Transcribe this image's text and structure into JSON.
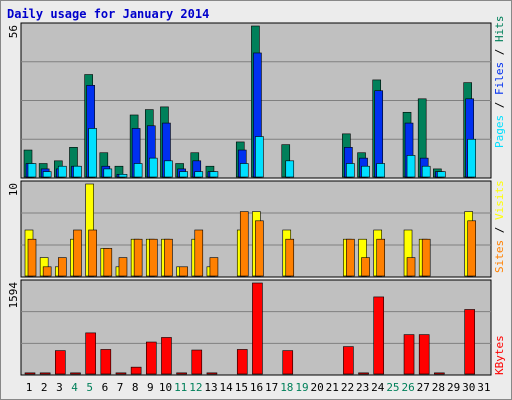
{
  "title": "Daily usage for January 2014",
  "panels": {
    "top": {
      "max_label": "56",
      "legend": [
        "Pages",
        "Files",
        "Hits"
      ]
    },
    "middle": {
      "max_label": "10",
      "legend": [
        "Sites",
        "Visits"
      ]
    },
    "bottom": {
      "max_label": "1594",
      "legend": [
        "KBytes"
      ]
    }
  },
  "colors": {
    "hits": "#00805a",
    "files": "#0030f0",
    "pages": "#00e0ff",
    "visits": "#ffff00",
    "sites": "#ff8000",
    "kbytes": "#ff0000",
    "plot_bg": "#c0c0c0",
    "weekend_label": "#00805a",
    "weekday_label": "#000000"
  },
  "chart_data": [
    {
      "type": "bar",
      "categories": [
        "1",
        "2",
        "3",
        "4",
        "5",
        "6",
        "7",
        "8",
        "9",
        "10",
        "11",
        "12",
        "13",
        "14",
        "15",
        "16",
        "17",
        "18",
        "19",
        "20",
        "21",
        "22",
        "23",
        "24",
        "25",
        "26",
        "27",
        "28",
        "29",
        "30",
        "31"
      ],
      "weekend_days": [
        "4",
        "5",
        "11",
        "12",
        "18",
        "19",
        "25",
        "26"
      ],
      "ylim": [
        0,
        56
      ],
      "series": [
        {
          "name": "Hits",
          "values": [
            10,
            5,
            6,
            11,
            38,
            9,
            4,
            23,
            25,
            26,
            5,
            9,
            4,
            0,
            13,
            56,
            0,
            12,
            0,
            0,
            0,
            16,
            9,
            36,
            0,
            24,
            29,
            3,
            0,
            35,
            0
          ]
        },
        {
          "name": "Files",
          "values": [
            5,
            3,
            3,
            4,
            34,
            4,
            1,
            18,
            19,
            20,
            3,
            6,
            2,
            0,
            10,
            46,
            0,
            0,
            0,
            0,
            0,
            11,
            7,
            32,
            0,
            20,
            7,
            2,
            0,
            29,
            0
          ]
        },
        {
          "name": "Pages",
          "values": [
            5,
            2,
            4,
            4,
            18,
            3,
            1,
            5,
            7,
            6,
            2,
            2,
            2,
            0,
            5,
            15,
            0,
            6,
            0,
            0,
            0,
            5,
            4,
            5,
            0,
            8,
            4,
            2,
            0,
            14,
            0
          ]
        }
      ]
    },
    {
      "type": "bar",
      "categories": [
        "1",
        "2",
        "3",
        "4",
        "5",
        "6",
        "7",
        "8",
        "9",
        "10",
        "11",
        "12",
        "13",
        "14",
        "15",
        "16",
        "17",
        "18",
        "19",
        "20",
        "21",
        "22",
        "23",
        "24",
        "25",
        "26",
        "27",
        "28",
        "29",
        "30",
        "31"
      ],
      "ylim": [
        0,
        10
      ],
      "series": [
        {
          "name": "Visits",
          "values": [
            5,
            2,
            1,
            4,
            10,
            3,
            1,
            4,
            4,
            4,
            1,
            4,
            1,
            0,
            5,
            7,
            0,
            5,
            0,
            0,
            0,
            4,
            4,
            5,
            0,
            5,
            4,
            0,
            0,
            7,
            0
          ]
        },
        {
          "name": "Sites",
          "values": [
            4,
            1,
            2,
            5,
            5,
            3,
            2,
            4,
            4,
            4,
            1,
            5,
            2,
            0,
            7,
            6,
            0,
            4,
            0,
            0,
            0,
            4,
            2,
            4,
            0,
            2,
            4,
            0,
            0,
            6,
            0
          ]
        }
      ]
    },
    {
      "type": "bar",
      "categories": [
        "1",
        "2",
        "3",
        "4",
        "5",
        "6",
        "7",
        "8",
        "9",
        "10",
        "11",
        "12",
        "13",
        "14",
        "15",
        "16",
        "17",
        "18",
        "19",
        "20",
        "21",
        "22",
        "23",
        "24",
        "25",
        "26",
        "27",
        "28",
        "29",
        "30",
        "31"
      ],
      "ylim": [
        0,
        1594
      ],
      "series": [
        {
          "name": "KBytes",
          "values": [
            20,
            20,
            410,
            20,
            720,
            430,
            20,
            120,
            560,
            640,
            20,
            420,
            20,
            0,
            430,
            1594,
            0,
            410,
            0,
            0,
            0,
            480,
            20,
            1350,
            0,
            690,
            690,
            20,
            0,
            1130,
            0
          ]
        }
      ]
    }
  ]
}
